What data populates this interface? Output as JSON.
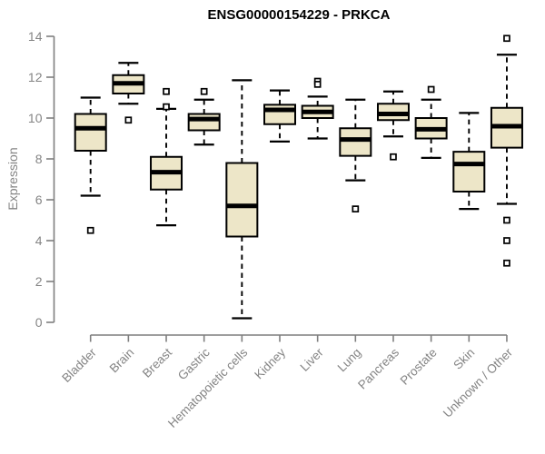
{
  "chart_data": {
    "type": "box",
    "title": "ENSG00000154229 - PRKCA",
    "ylabel": "Expression",
    "xlabel": "",
    "ylim": [
      0,
      14
    ],
    "yticks": [
      0,
      2,
      4,
      6,
      8,
      10,
      12,
      14
    ],
    "grid": false,
    "legend": "none",
    "categories": [
      "Bladder",
      "Brain",
      "Breast",
      "Gastric",
      "Hematopoietic cells",
      "Kidney",
      "Liver",
      "Lung",
      "Pancreas",
      "Prostate",
      "Skin",
      "Unknown / Other"
    ],
    "series": [
      {
        "name": "Bladder",
        "whisker_low": 6.2,
        "q1": 8.4,
        "median": 9.5,
        "q3": 10.2,
        "whisker_high": 11.0,
        "outliers": [
          4.5
        ]
      },
      {
        "name": "Brain",
        "whisker_low": 10.7,
        "q1": 11.2,
        "median": 11.7,
        "q3": 12.1,
        "whisker_high": 12.7,
        "outliers": [
          9.9
        ]
      },
      {
        "name": "Breast",
        "whisker_low": 4.75,
        "q1": 6.5,
        "median": 7.35,
        "q3": 8.1,
        "whisker_high": 10.45,
        "outliers": [
          11.3,
          10.55
        ]
      },
      {
        "name": "Gastric",
        "whisker_low": 8.7,
        "q1": 9.4,
        "median": 9.95,
        "q3": 10.2,
        "whisker_high": 10.9,
        "outliers": [
          11.3
        ]
      },
      {
        "name": "Hematopoietic cells",
        "whisker_low": 0.2,
        "q1": 4.2,
        "median": 5.7,
        "q3": 7.8,
        "whisker_high": 11.85,
        "outliers": []
      },
      {
        "name": "Kidney",
        "whisker_low": 8.85,
        "q1": 9.7,
        "median": 10.4,
        "q3": 10.65,
        "whisker_high": 11.35,
        "outliers": []
      },
      {
        "name": "Liver",
        "whisker_low": 9.0,
        "q1": 10.0,
        "median": 10.3,
        "q3": 10.6,
        "whisker_high": 11.05,
        "outliers": [
          11.8,
          11.65
        ]
      },
      {
        "name": "Lung",
        "whisker_low": 6.95,
        "q1": 8.15,
        "median": 8.95,
        "q3": 9.5,
        "whisker_high": 10.9,
        "outliers": [
          5.55
        ]
      },
      {
        "name": "Pancreas",
        "whisker_low": 9.1,
        "q1": 9.9,
        "median": 10.2,
        "q3": 10.7,
        "whisker_high": 11.3,
        "outliers": [
          8.1
        ]
      },
      {
        "name": "Prostate",
        "whisker_low": 8.05,
        "q1": 9.0,
        "median": 9.45,
        "q3": 10.0,
        "whisker_high": 10.9,
        "outliers": [
          11.4
        ]
      },
      {
        "name": "Skin",
        "whisker_low": 5.55,
        "q1": 6.4,
        "median": 7.75,
        "q3": 8.35,
        "whisker_high": 10.25,
        "outliers": []
      },
      {
        "name": "Unknown / Other",
        "whisker_low": 5.8,
        "q1": 8.55,
        "median": 9.6,
        "q3": 10.5,
        "whisker_high": 13.1,
        "outliers": [
          13.9,
          5.0,
          4.0,
          2.9
        ]
      }
    ],
    "colors": {
      "box_fill": "#EDE6C8",
      "box_stroke": "#000000",
      "median": "#000000",
      "whisker": "#000000",
      "outlier_stroke": "#000000",
      "axis": "#7f7f7f",
      "tick_label": "#848484",
      "title": "#000000",
      "background": "#ffffff"
    }
  }
}
